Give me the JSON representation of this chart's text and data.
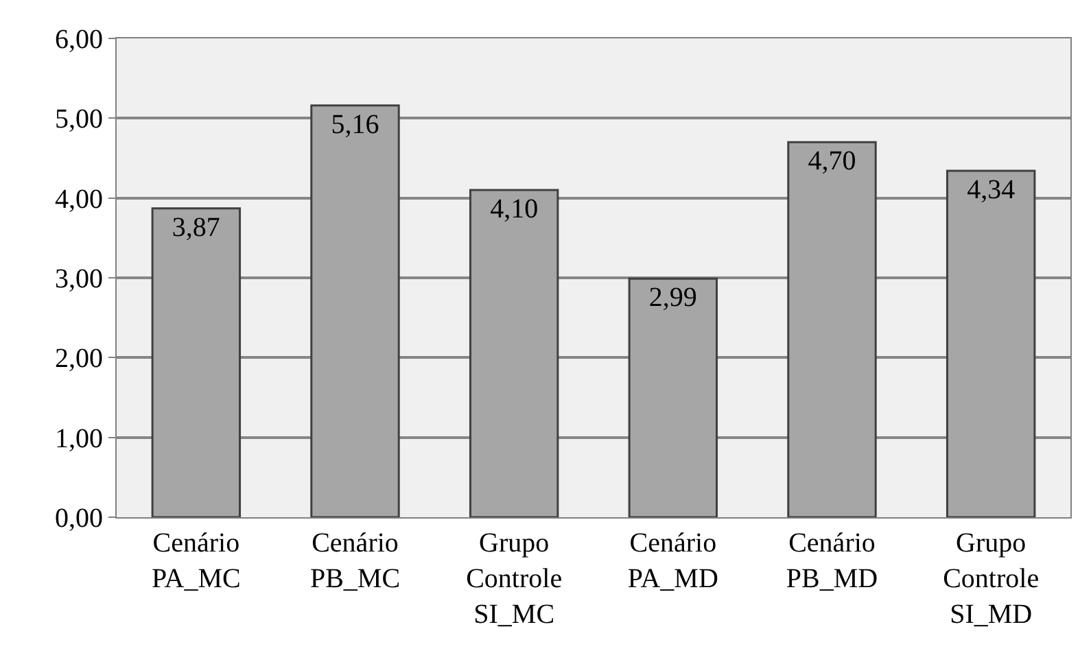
{
  "chart_data": {
    "type": "bar",
    "categories": [
      "Cenário\nPA_MC",
      "Cenário\nPB_MC",
      "Grupo\nControle\nSI_MC",
      "Cenário\nPA_MD",
      "Cenário\nPB_MD",
      "Grupo\nControle\nSI_MD"
    ],
    "values": [
      3.87,
      5.16,
      4.1,
      2.99,
      4.7,
      4.34
    ],
    "value_labels": [
      "3,87",
      "5,16",
      "4,10",
      "2,99",
      "4,70",
      "4,34"
    ],
    "color": "#a6a6a6",
    "ylim": [
      0,
      6
    ],
    "yticks": [
      {
        "value": 0,
        "label": "0,00"
      },
      {
        "value": 1,
        "label": "1,00"
      },
      {
        "value": 2,
        "label": "2,00"
      },
      {
        "value": 3,
        "label": "3,00"
      },
      {
        "value": 4,
        "label": "4,00"
      },
      {
        "value": 5,
        "label": "5,00"
      },
      {
        "value": 6,
        "label": "6,00"
      }
    ],
    "grid": "y",
    "legend": false
  }
}
